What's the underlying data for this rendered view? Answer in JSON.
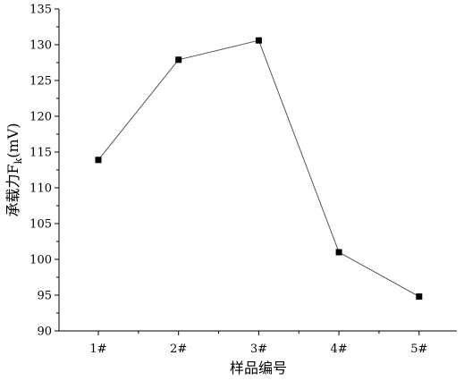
{
  "chart_data": {
    "type": "line",
    "categories": [
      "1#",
      "2#",
      "3#",
      "4#",
      "5#"
    ],
    "series": [
      {
        "values": [
          113.9,
          127.9,
          130.6,
          101.0,
          94.8
        ]
      }
    ],
    "xlabel": "样品编号",
    "ylabel": "承载力F",
    "ylabel_subscript": "k",
    "ylabel_unit": "(mV)",
    "ylim": [
      90,
      135
    ],
    "yticks": [
      90,
      95,
      100,
      105,
      110,
      115,
      120,
      125,
      130,
      135
    ],
    "grid": false,
    "marker": "square",
    "line_color": "#555555",
    "marker_color": "#000000"
  }
}
